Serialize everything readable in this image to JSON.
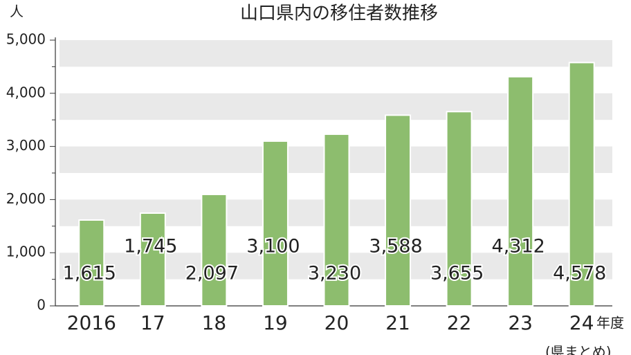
{
  "chart_data": {
    "type": "bar",
    "title": "山口県内の移住者数推移",
    "y_unit": "人",
    "x_unit": "年度",
    "source": "(県まとめ)",
    "categories": [
      "2016",
      "17",
      "18",
      "19",
      "20",
      "21",
      "22",
      "23",
      "24"
    ],
    "values": [
      1615,
      1745,
      2097,
      3100,
      3230,
      3588,
      3655,
      4312,
      4578
    ],
    "value_labels": [
      "1,615",
      "1,745",
      "2,097",
      "3,100",
      "3,230",
      "3,588",
      "3,655",
      "4,312",
      "4,578"
    ],
    "color": "#8dbd6e",
    "ylim": [
      0,
      5000
    ],
    "yticks": [
      0,
      {
        "value": 1000,
        "label": "1,000"
      },
      {
        "value": 2000,
        "label": "2,000"
      },
      {
        "value": 3000,
        "label": "3,000"
      },
      {
        "value": 4000,
        "label": "4,000"
      },
      {
        "value": 5000,
        "label": "5,000"
      }
    ],
    "grid": true
  }
}
